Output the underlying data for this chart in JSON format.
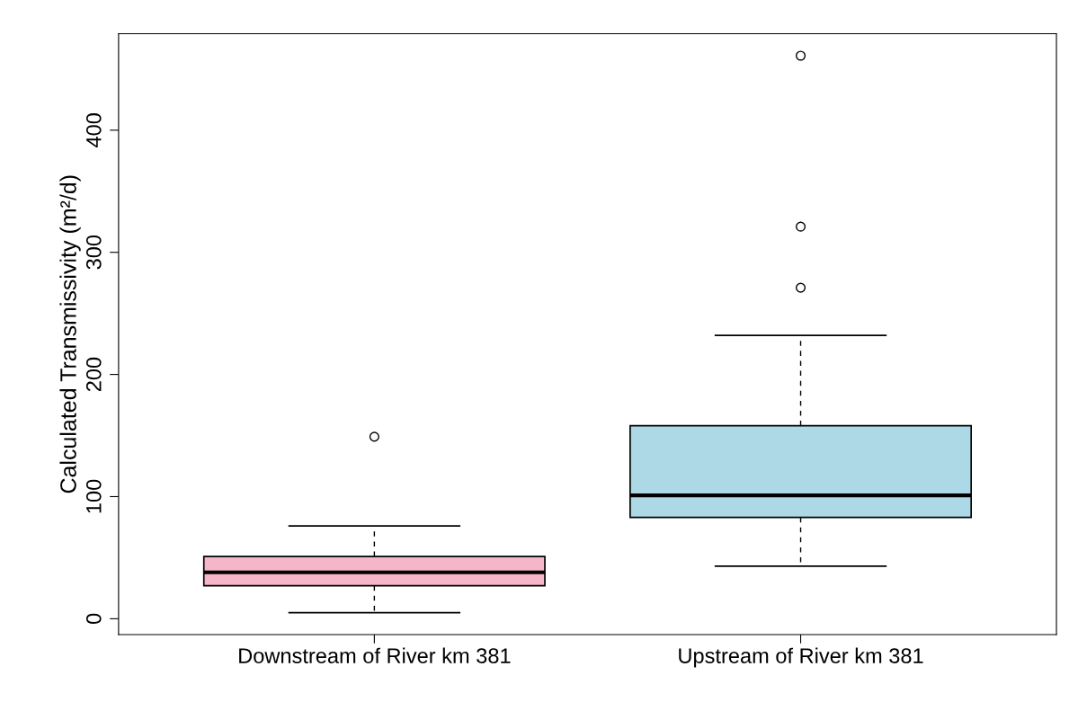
{
  "chart_data": {
    "type": "box",
    "ylabel": "Calculated Transmissivity (m²/d)",
    "categories": [
      "Downstream of River km 381",
      "Upstream of River km 381"
    ],
    "boxes": [
      {
        "low": 5,
        "q1": 27,
        "median": 38,
        "q3": 51,
        "high": 76,
        "outliers": [
          149
        ]
      },
      {
        "low": 43,
        "q1": 83,
        "median": 101,
        "q3": 158,
        "high": 232,
        "outliers": [
          271,
          321,
          461
        ]
      }
    ],
    "colors": [
      "#f4b6c8",
      "#add8e6"
    ],
    "ylim": [
      -13,
      479
    ],
    "yticks": [
      0,
      100,
      200,
      300,
      400
    ],
    "grid": false
  }
}
